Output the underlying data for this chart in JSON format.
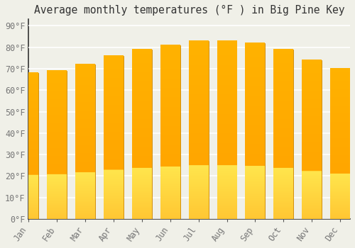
{
  "title": "Average monthly temperatures (°F ) in Big Pine Key",
  "months": [
    "Jan",
    "Feb",
    "Mar",
    "Apr",
    "May",
    "Jun",
    "Jul",
    "Aug",
    "Sep",
    "Oct",
    "Nov",
    "Dec"
  ],
  "values": [
    68,
    69,
    72,
    76,
    79,
    81,
    83,
    83,
    82,
    79,
    74,
    70
  ],
  "bar_color": "#FFA500",
  "bar_edge_color": "#CC8800",
  "yticks": [
    0,
    10,
    20,
    30,
    40,
    50,
    60,
    70,
    80,
    90
  ],
  "ytick_labels": [
    "0°F",
    "10°F",
    "20°F",
    "30°F",
    "40°F",
    "50°F",
    "60°F",
    "70°F",
    "80°F",
    "90°F"
  ],
  "ylim": [
    0,
    93
  ],
  "background_color": "#f0f0e8",
  "grid_color": "#ffffff",
  "title_fontsize": 10.5,
  "tick_fontsize": 8.5,
  "bar_width": 0.7
}
